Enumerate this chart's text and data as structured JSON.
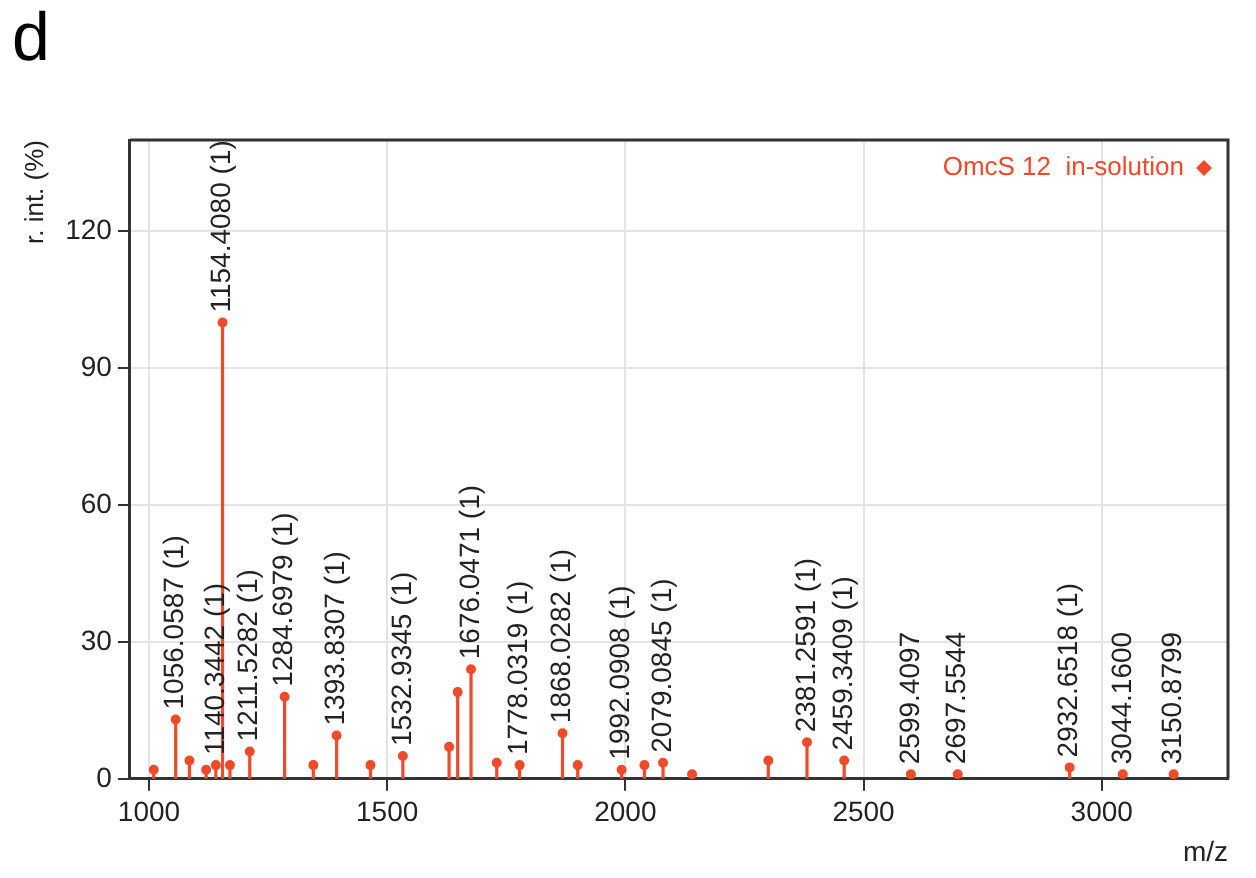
{
  "chart_data": {
    "type": "lollipop",
    "xlabel": "m/z",
    "ylabel": "r. int. (%)",
    "annotations": [
      "d",
      {
        "text": "1056.0587 (1)",
        "x": 1056.0587,
        "y": 13
      },
      {
        "text": "1140.3442 (1)",
        "x": 1140.3442,
        "y": 3
      },
      {
        "text": "1154.4080 (1)",
        "x": 1154.408,
        "y": 100
      },
      {
        "text": "1211.5282 (1)",
        "x": 1211.5282,
        "y": 6
      },
      {
        "text": "1284.6979 (1)",
        "x": 1284.6979,
        "y": 18
      },
      {
        "text": "1393.8307 (1)",
        "x": 1393.8307,
        "y": 9.5
      },
      {
        "text": "1532.9345 (1)",
        "x": 1532.9345,
        "y": 5
      },
      {
        "text": "1676.0471 (1)",
        "x": 1676.0471,
        "y": 24
      },
      {
        "text": "1778.0319 (1)",
        "x": 1778.0319,
        "y": 3
      },
      {
        "text": "1868.0282 (1)",
        "x": 1868.0282,
        "y": 10
      },
      {
        "text": "1992.0908 (1)",
        "x": 1992.0908,
        "y": 2
      },
      {
        "text": "2079.0845 (1)",
        "x": 2079.0845,
        "y": 3.5
      },
      {
        "text": "2381.2591 (1)",
        "x": 2381.2591,
        "y": 8
      },
      {
        "text": "2459.3409 (1)",
        "x": 2459.3409,
        "y": 4
      },
      {
        "text": "2599.4097",
        "x": 2599.4097,
        "y": 1
      },
      {
        "text": "2697.5544",
        "x": 2697.5544,
        "y": 1
      },
      {
        "text": "2932.6518 (1)",
        "x": 2932.6518,
        "y": 2.5
      },
      {
        "text": "3044.1600",
        "x": 3044.16,
        "y": 1
      },
      {
        "text": "3150.8799",
        "x": 3150.8799,
        "y": 1
      }
    ],
    "xlim": [
      960,
      3265
    ],
    "xticks": [
      1000,
      1500,
      2000,
      2500,
      3000
    ],
    "ylim": [
      0,
      140
    ],
    "yticks": [
      0,
      30,
      60,
      90,
      120
    ],
    "grid": true,
    "legend": "top right",
    "marker": "circle",
    "series": [
      {
        "name": "OmcS 12  in-solution",
        "color": "#f04a2a",
        "x": [
          1010,
          1056.0587,
          1085,
          1120,
          1140.3442,
          1154.408,
          1170,
          1211.5282,
          1284.6979,
          1345,
          1393.8307,
          1465,
          1532.9345,
          1630,
          1648,
          1676.0471,
          1730,
          1778.0319,
          1868.0282,
          1900,
          1992.0908,
          2040,
          2079.0845,
          2140,
          2300,
          2381.2591,
          2459.3409,
          2599.4097,
          2697.5544,
          2932.6518,
          3044.16,
          3150.8799
        ],
        "values": [
          2,
          13,
          4,
          2,
          3,
          100,
          3,
          6,
          18,
          3,
          9.5,
          3,
          5,
          7,
          19,
          24,
          3.5,
          3,
          10,
          3,
          2,
          3,
          3.5,
          1,
          4,
          8,
          4,
          1,
          1,
          2.5,
          1,
          1
        ]
      }
    ]
  }
}
